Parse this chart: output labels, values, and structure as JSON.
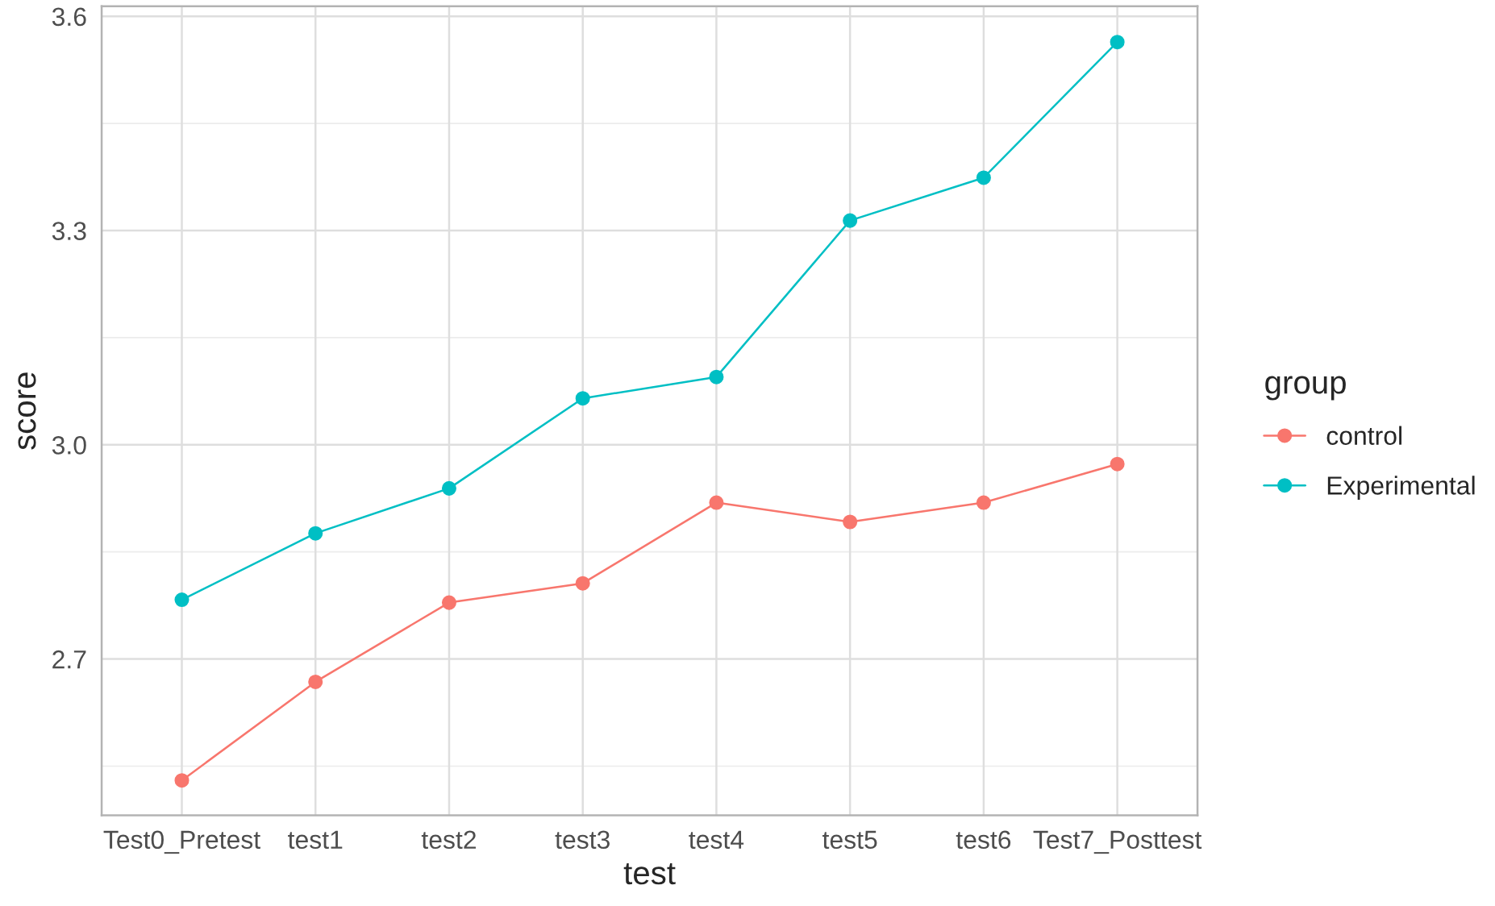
{
  "chart_data": {
    "type": "line",
    "xlabel": "test",
    "ylabel": "score",
    "legend_title": "group",
    "categories": [
      "Test0_Pretest",
      "test1",
      "test2",
      "test3",
      "test4",
      "test5",
      "test6",
      "Test7_Posttest"
    ],
    "series": [
      {
        "name": "control",
        "color": "#f8766d",
        "values": [
          2.53,
          2.668,
          2.779,
          2.806,
          2.919,
          2.892,
          2.919,
          2.973
        ]
      },
      {
        "name": "Experimental",
        "color": "#00bfc4",
        "values": [
          2.783,
          2.876,
          2.939,
          3.065,
          3.095,
          3.314,
          3.374,
          3.564
        ]
      }
    ],
    "ylim": [
      2.481,
      3.614
    ],
    "yticks": [
      {
        "value": 2.7,
        "label": "2.7"
      },
      {
        "value": 3.0,
        "label": "3.0"
      },
      {
        "value": 3.3,
        "label": "3.3"
      },
      {
        "value": 3.6,
        "label": "3.6"
      }
    ],
    "grid": true,
    "legend": "right",
    "marker": "circle",
    "line_style": "solid"
  }
}
